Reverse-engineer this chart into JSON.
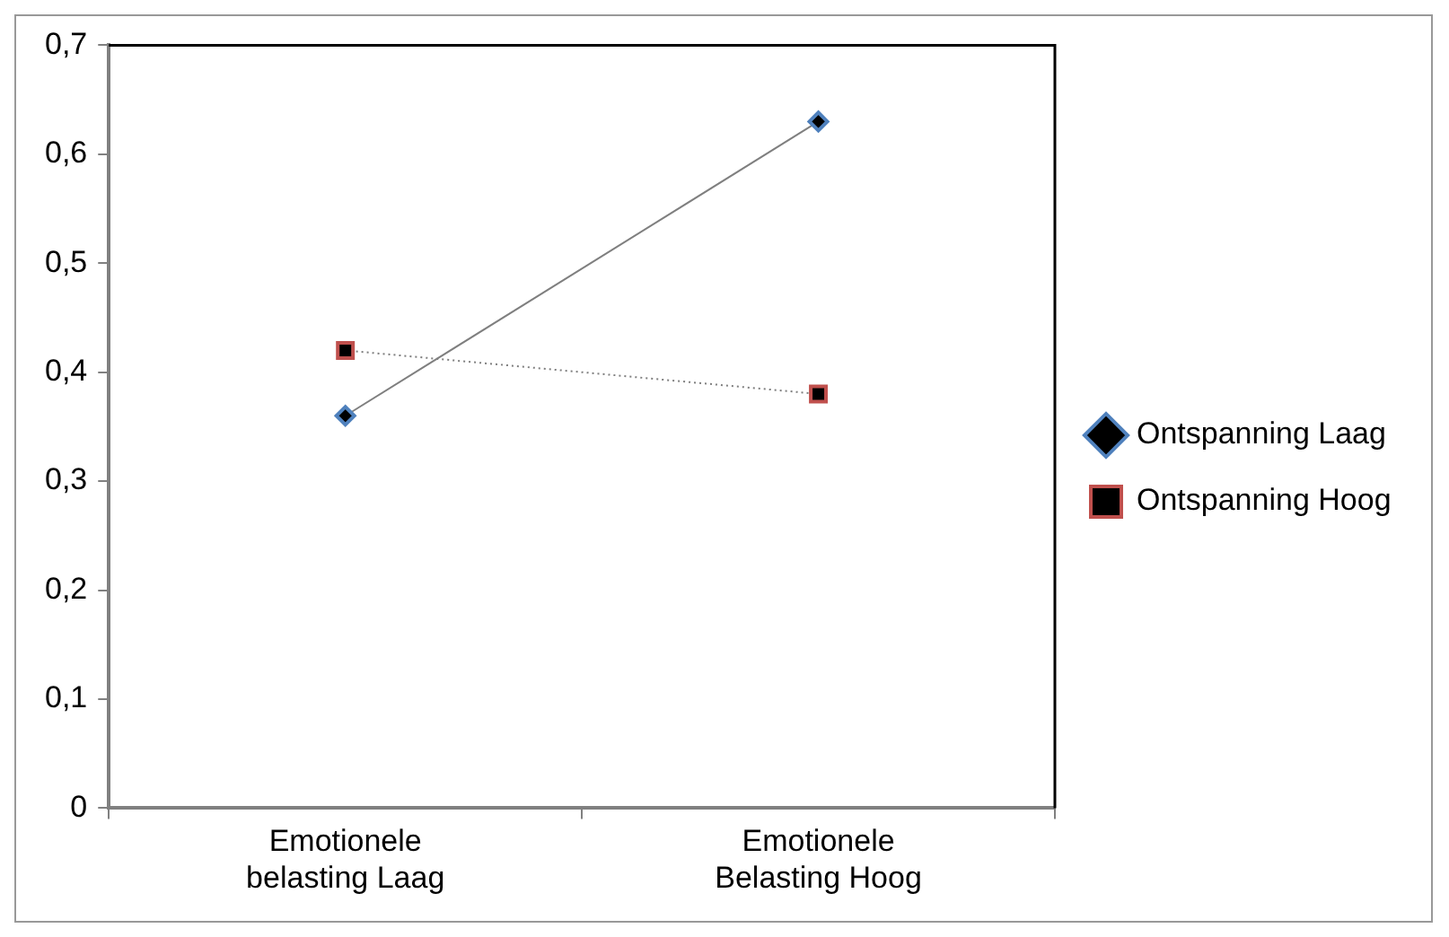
{
  "chart_data": {
    "type": "line",
    "categories": [
      "Emotionele belasting Laag",
      "Emotionele Belasting Hoog"
    ],
    "series": [
      {
        "name": "Ontspanning Laag",
        "color": "#4f81bd",
        "values": [
          0.36,
          0.63
        ],
        "marker": "diamond",
        "line_style": "solid"
      },
      {
        "name": "Ontspanning Hoog",
        "color": "#c0504d",
        "values": [
          0.42,
          0.38
        ],
        "marker": "square",
        "line_style": "dotted"
      }
    ],
    "ylim": [
      0,
      0.7
    ],
    "yticks": [
      {
        "value": 0,
        "label": "0"
      },
      {
        "value": 0.1,
        "label": "0,1"
      },
      {
        "value": 0.2,
        "label": "0,2"
      },
      {
        "value": 0.3,
        "label": "0,3"
      },
      {
        "value": 0.4,
        "label": "0,4"
      },
      {
        "value": 0.5,
        "label": "0,5"
      },
      {
        "value": 0.6,
        "label": "0,6"
      },
      {
        "value": 0.7,
        "label": "0,7"
      }
    ],
    "grid": false,
    "legend": "right"
  }
}
